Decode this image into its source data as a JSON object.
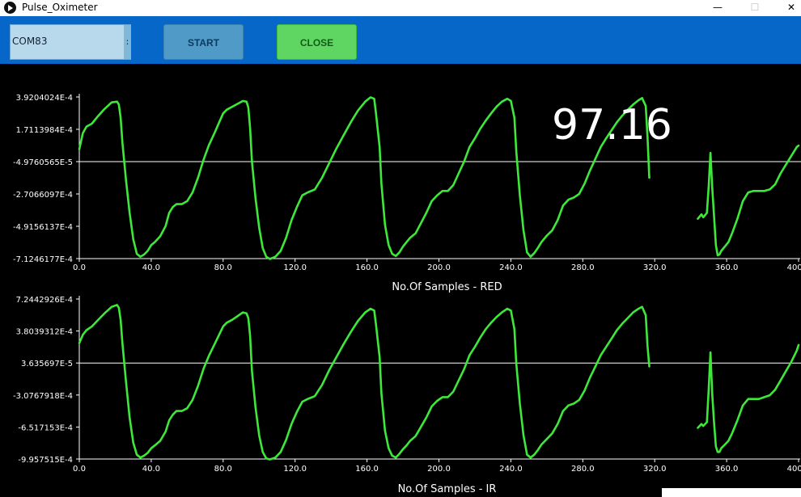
{
  "window": {
    "title": "Pulse_Oximeter",
    "controls": {
      "minimize": "—",
      "maximize": "☐",
      "close": "✕"
    }
  },
  "toolbar": {
    "port_value": "COM83",
    "port_arrow": ":",
    "start_label": "START",
    "close_label": "CLOSE"
  },
  "readout": {
    "spo2": "97.16"
  },
  "colors": {
    "trace": "#3ee83a",
    "toolbar": "#0767c9",
    "close_button": "#5fd662",
    "start_button": "#4f9ac7"
  },
  "chart_data": [
    {
      "type": "line",
      "xlabel": "No.Of Samples  -  RED",
      "xlim": [
        0,
        400
      ],
      "x_ticks": [
        "0.0",
        "40.0",
        "80.0",
        "120.0",
        "160.0",
        "200.0",
        "240.0",
        "280.0",
        "320.0",
        "360.0",
        "400.0"
      ],
      "y_ticks": [
        "3.9204024E-4",
        "1.7113984E-4",
        "-4.9760565E-5",
        "-2.7066097E-4",
        "-4.9156137E-4",
        "-7.1246177E-4"
      ],
      "baseline_value": -4.97e-05,
      "series": [
        {
          "segment": 1,
          "x": [
            0,
            2,
            4,
            7,
            10,
            14,
            18,
            21,
            22,
            23,
            24,
            26,
            28,
            30,
            32,
            34,
            36,
            38,
            40,
            42,
            45,
            48,
            50,
            52,
            54,
            57,
            60,
            63,
            66,
            69,
            72,
            75,
            78,
            80,
            82,
            85,
            88,
            91,
            93,
            94,
            95,
            96,
            98,
            100,
            102,
            104,
            106,
            109,
            112,
            115,
            118,
            121,
            124,
            127,
            131,
            135,
            139,
            143,
            147,
            151,
            155,
            159,
            162,
            164,
            165,
            167,
            168,
            170,
            172,
            174,
            176,
            178,
            180,
            182,
            184,
            187,
            190,
            193,
            196,
            199,
            202,
            205,
            208,
            211,
            214,
            217,
            220,
            223,
            226,
            229,
            232,
            235,
            238,
            240,
            242,
            243,
            245,
            247,
            249,
            251,
            253,
            255,
            257,
            260,
            263,
            266,
            269,
            272,
            275,
            278,
            281,
            284,
            287,
            290,
            293,
            296,
            299,
            302,
            305,
            308,
            311,
            313,
            315,
            316,
            317
          ],
          "y": [
            3.5e-05,
            0.000145,
            0.00019,
            0.00021,
            0.000255,
            0.00031,
            0.000355,
            0.00036,
            0.00034,
            0.00025,
            8e-05,
            -0.00018,
            -0.0004,
            -0.00058,
            -0.00068,
            -0.0007,
            -0.000685,
            -0.00066,
            -0.00062,
            -0.0006,
            -0.00056,
            -0.00049,
            -0.0004,
            -0.00036,
            -0.00034,
            -0.00034,
            -0.00032,
            -0.00026,
            -0.00016,
            -4e-05,
            6e-05,
            0.00014,
            0.000225,
            0.00028,
            0.000305,
            0.000325,
            0.000345,
            0.000365,
            0.00036,
            0.00032,
            0.00018,
            -5e-05,
            -0.0003,
            -0.0005,
            -0.00064,
            -0.0007,
            -0.000715,
            -0.0007,
            -0.00066,
            -0.00057,
            -0.00045,
            -0.00036,
            -0.00028,
            -0.00026,
            -0.00024,
            -0.00016,
            -6e-05,
            4e-05,
            0.00013,
            0.00022,
            0.0003,
            0.00036,
            0.00039,
            0.00038,
            0.00028,
            5e-05,
            -0.0002,
            -0.00048,
            -0.00062,
            -0.00068,
            -0.000695,
            -0.00067,
            -0.00063,
            -0.0006,
            -0.00057,
            -0.00054,
            -0.00047,
            -0.0004,
            -0.00032,
            -0.00028,
            -0.00025,
            -0.00025,
            -0.00021,
            -0.00013,
            -5e-05,
            5e-05,
            0.00011,
            0.000175,
            0.00023,
            0.00028,
            0.000325,
            0.00036,
            0.00038,
            0.000365,
            0.00025,
            2e-05,
            -0.00028,
            -0.00052,
            -0.00067,
            -0.0007,
            -0.000675,
            -0.00064,
            -0.0006,
            -0.000555,
            -0.00052,
            -0.00045,
            -0.00035,
            -0.00031,
            -0.000295,
            -0.00027,
            -0.0002,
            -0.00011,
            -3e-05,
            5e-05,
            0.00011,
            0.000165,
            0.00022,
            0.000265,
            0.000305,
            0.00034,
            0.00037,
            0.000385,
            0.00033,
            0.00012,
            -0.00016
          ]
        },
        {
          "segment": 2,
          "x": [
            344,
            346,
            347,
            349,
            350,
            351,
            352,
            353,
            354,
            355,
            356,
            357,
            359,
            361,
            363,
            366,
            369,
            372,
            375,
            378,
            381,
            384,
            387,
            390,
            393,
            396,
            399,
            400
          ],
          "y": [
            -0.00044,
            -0.00041,
            -0.00043,
            -0.0004,
            -0.00022,
            1e-05,
            -0.00023,
            -0.00042,
            -0.00062,
            -0.00069,
            -0.000685,
            -0.00066,
            -0.00063,
            -0.0006,
            -0.00054,
            -0.00044,
            -0.00032,
            -0.00026,
            -0.00025,
            -0.00025,
            -0.00025,
            -0.00024,
            -0.000205,
            -0.00013,
            -7e-05,
            -1e-05,
            5e-05,
            6e-05
          ]
        }
      ]
    },
    {
      "type": "line",
      "xlabel": "No.Of Samples  -  IR",
      "xlim": [
        0,
        400
      ],
      "x_ticks": [
        "0.0",
        "40.0",
        "80.0",
        "120.0",
        "160.0",
        "200.0",
        "240.0",
        "280.0",
        "320.0",
        "360.0",
        "400.0"
      ],
      "y_ticks": [
        "7.2442926E-4",
        "3.8039312E-4",
        "3.635697E-5",
        "-3.0767918E-4",
        "-6.517153E-4",
        "-9.957515E-4"
      ],
      "baseline_value": 3.64e-05,
      "series": [
        {
          "segment": 1,
          "x": [
            0,
            2,
            4,
            7,
            10,
            14,
            18,
            21,
            22,
            23,
            24,
            26,
            28,
            30,
            32,
            34,
            36,
            38,
            40,
            42,
            45,
            48,
            50,
            52,
            54,
            57,
            60,
            63,
            66,
            69,
            72,
            75,
            78,
            80,
            82,
            85,
            88,
            91,
            93,
            94,
            95,
            96,
            98,
            100,
            102,
            104,
            106,
            109,
            112,
            115,
            118,
            121,
            124,
            127,
            131,
            135,
            139,
            143,
            147,
            151,
            155,
            159,
            162,
            164,
            165,
            167,
            168,
            170,
            172,
            174,
            176,
            178,
            180,
            182,
            184,
            187,
            190,
            193,
            196,
            199,
            202,
            205,
            208,
            211,
            214,
            217,
            220,
            223,
            226,
            229,
            232,
            235,
            238,
            240,
            242,
            243,
            245,
            247,
            249,
            251,
            253,
            255,
            257,
            260,
            263,
            266,
            269,
            272,
            275,
            278,
            281,
            284,
            287,
            290,
            293,
            296,
            299,
            302,
            305,
            308,
            311,
            313,
            315,
            316,
            317
          ],
          "y": [
            0.00025,
            0.00034,
            0.00039,
            0.00043,
            0.00049,
            0.00057,
            0.00064,
            0.00066,
            0.00063,
            0.0005,
            0.00025,
            -0.00017,
            -0.00055,
            -0.00082,
            -0.00095,
            -0.00098,
            -0.00096,
            -0.00093,
            -0.00088,
            -0.00085,
            -0.0008,
            -0.0007,
            -0.00058,
            -0.00052,
            -0.00048,
            -0.00048,
            -0.00045,
            -0.00036,
            -0.00021,
            -3e-05,
            0.00011,
            0.00023,
            0.00035,
            0.00043,
            0.00047,
            0.0005,
            0.00054,
            0.00058,
            0.00057,
            0.00052,
            0.00033,
            -5e-05,
            -0.00044,
            -0.00074,
            -0.00092,
            -0.00099,
            -0.001,
            -0.00098,
            -0.00092,
            -0.00079,
            -0.00062,
            -0.00049,
            -0.00038,
            -0.00035,
            -0.00032,
            -0.0002,
            -4e-05,
            0.0001,
            0.00024,
            0.00037,
            0.00049,
            0.00058,
            0.00062,
            0.0006,
            0.00045,
            0.0001,
            -0.00029,
            -0.00069,
            -0.00088,
            -0.00096,
            -0.00098,
            -0.00094,
            -0.00089,
            -0.00085,
            -0.0008,
            -0.00075,
            -0.00065,
            -0.00055,
            -0.00043,
            -0.00037,
            -0.00033,
            -0.00033,
            -0.00027,
            -0.00015,
            -3e-05,
            0.00012,
            0.00021,
            0.00031,
            0.0004,
            0.00047,
            0.00053,
            0.00058,
            0.00062,
            0.0006,
            0.0004,
            3e-05,
            -0.0004,
            -0.00074,
            -0.00095,
            -0.00098,
            -0.00095,
            -0.0009,
            -0.00084,
            -0.00078,
            -0.00072,
            -0.00062,
            -0.00048,
            -0.00042,
            -0.0004,
            -0.00036,
            -0.00026,
            -0.00012,
            0.0,
            0.00012,
            0.00021,
            0.0003,
            0.00039,
            0.00046,
            0.00052,
            0.00058,
            0.00062,
            0.00064,
            0.00055,
            0.00022,
            0.0
          ]
        },
        {
          "segment": 2,
          "x": [
            344,
            346,
            347,
            349,
            350,
            351,
            352,
            353,
            354,
            355,
            356,
            357,
            359,
            361,
            363,
            366,
            369,
            372,
            375,
            378,
            381,
            384,
            387,
            390,
            393,
            396,
            399,
            400
          ],
          "y": [
            -0.00066,
            -0.00062,
            -0.00064,
            -0.0006,
            -0.00025,
            0.00015,
            -0.0003,
            -0.0006,
            -0.00086,
            -0.00092,
            -0.00092,
            -0.00088,
            -0.00084,
            -0.0008,
            -0.00072,
            -0.00058,
            -0.00042,
            -0.00035,
            -0.00035,
            -0.00035,
            -0.00033,
            -0.00031,
            -0.00025,
            -0.00015,
            -5e-05,
            5e-05,
            0.00017,
            0.00023
          ]
        }
      ]
    }
  ]
}
